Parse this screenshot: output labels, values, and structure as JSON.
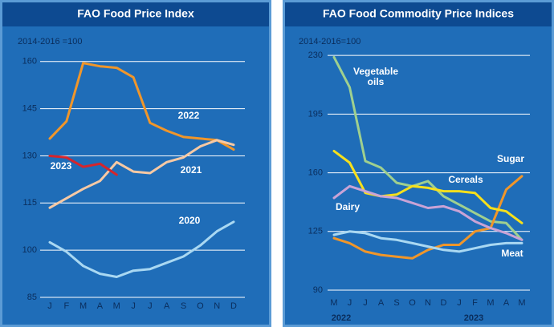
{
  "chart_data": [
    {
      "type": "line",
      "title": "FAO Food Price Index",
      "subtitle": "2014-2016 =100",
      "categories": [
        "J",
        "F",
        "M",
        "A",
        "M",
        "J",
        "J",
        "A",
        "S",
        "O",
        "N",
        "D"
      ],
      "ylim": [
        85,
        163
      ],
      "yticks": [
        85,
        100,
        115,
        130,
        145,
        160
      ],
      "grid": true,
      "series": [
        {
          "name": "2022",
          "color": "#f0962a",
          "values": [
            135.5,
            141,
            159.5,
            158.5,
            158,
            155,
            140.5,
            138,
            136,
            135.5,
            135,
            132
          ]
        },
        {
          "name": "2021",
          "color": "#f7c9a4",
          "values": [
            113.5,
            116.5,
            119.5,
            122,
            128,
            125,
            124.5,
            128,
            129.5,
            133,
            135,
            133.5
          ]
        },
        {
          "name": "2023",
          "color": "#d6252b",
          "values": [
            130,
            129.5,
            126.5,
            127.5,
            124,
            null,
            null,
            null,
            null,
            null,
            null,
            null
          ]
        },
        {
          "name": "2020",
          "color": "#a9d8f2",
          "values": [
            102.5,
            99.5,
            95,
            92.5,
            91.5,
            93.5,
            94,
            96,
            98,
            101.5,
            106,
            109
          ]
        }
      ]
    },
    {
      "type": "line",
      "title": "FAO Food Commodity Price Indices",
      "subtitle": "2014-2016=100",
      "categories": [
        "M",
        "J",
        "J",
        "A",
        "S",
        "O",
        "N",
        "D",
        "J",
        "F",
        "M",
        "A",
        "M"
      ],
      "years": [
        "2022",
        "2023"
      ],
      "ylim": [
        90,
        232
      ],
      "yticks": [
        90,
        125,
        160,
        195,
        230
      ],
      "grid": true,
      "series": [
        {
          "name": "Vegetable oils",
          "color": "#9fd08f",
          "values": [
            229,
            211,
            167,
            163,
            154,
            152,
            155,
            146,
            141,
            136,
            131,
            130,
            120
          ]
        },
        {
          "name": "Sugar",
          "color": "#f0962a",
          "values": [
            121,
            118,
            113,
            111,
            110,
            109,
            114,
            117,
            117,
            125,
            127,
            150,
            158
          ]
        },
        {
          "name": "Cereals",
          "color": "#f7e01b",
          "values": [
            173,
            166,
            148,
            146,
            147,
            152,
            151,
            149,
            149,
            148,
            139,
            137,
            130
          ]
        },
        {
          "name": "Dairy",
          "color": "#c9a3d6",
          "values": [
            145,
            152,
            149,
            146,
            145,
            142,
            139,
            140,
            137,
            131,
            127,
            124,
            120
          ]
        },
        {
          "name": "Meat",
          "color": "#a9d8f2",
          "values": [
            123,
            125,
            124,
            121,
            120,
            118,
            116,
            114,
            113,
            115,
            117,
            118,
            118
          ]
        }
      ]
    }
  ]
}
